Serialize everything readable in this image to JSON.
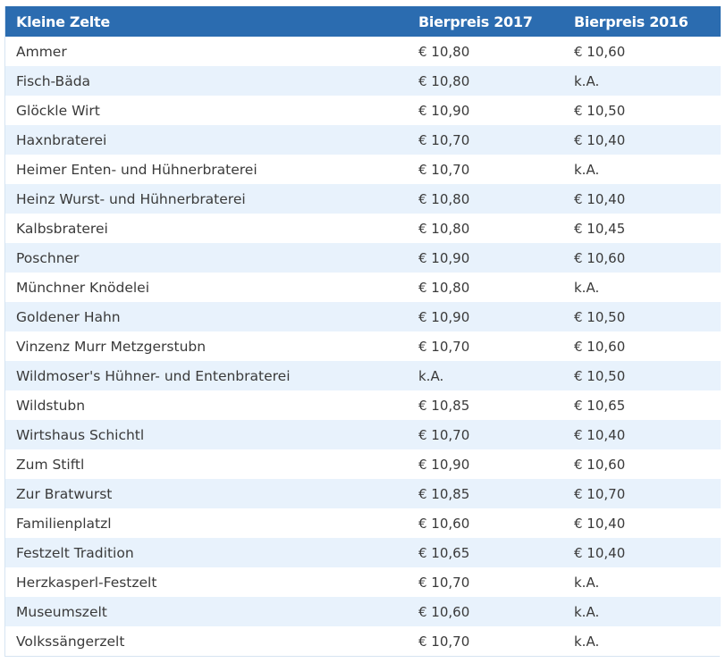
{
  "table": {
    "headers": [
      "Kleine Zelte",
      "Bierpreis 2017",
      "Bierpreis 2016"
    ],
    "rows": [
      [
        "Ammer",
        "€ 10,80",
        "€ 10,60"
      ],
      [
        "Fisch-Bäda",
        "€ 10,80",
        "k.A."
      ],
      [
        "Glöckle Wirt",
        "€ 10,90",
        "€ 10,50"
      ],
      [
        "Haxnbraterei",
        "€ 10,70",
        "€ 10,40"
      ],
      [
        "Heimer Enten- und Hühnerbraterei",
        "€ 10,70",
        "k.A."
      ],
      [
        "Heinz Wurst- und Hühnerbraterei",
        "€ 10,80",
        "€ 10,40"
      ],
      [
        "Kalbsbraterei",
        "€ 10,80",
        "€ 10,45"
      ],
      [
        "Poschner",
        "€ 10,90",
        "€ 10,60"
      ],
      [
        "Münchner Knödelei",
        "€ 10,80",
        "k.A."
      ],
      [
        "Goldener Hahn",
        "€ 10,90",
        "€ 10,50"
      ],
      [
        "Vinzenz Murr Metzgerstubn",
        "€ 10,70",
        "€ 10,60"
      ],
      [
        "Wildmoser's Hühner- und Entenbraterei",
        "k.A.",
        "€ 10,50"
      ],
      [
        "Wildstubn",
        "€ 10,85",
        "€ 10,65"
      ],
      [
        "Wirtshaus Schichtl",
        "€ 10,70",
        "€ 10,40"
      ],
      [
        "Zum Stiftl",
        "€ 10,90",
        "€ 10,60"
      ],
      [
        "Zur Bratwurst",
        "€ 10,85",
        "€ 10,70"
      ],
      [
        "Familienplatzl",
        "€ 10,60",
        "€ 10,40"
      ],
      [
        "Festzelt Tradition",
        "€ 10,65",
        "€ 10,40"
      ],
      [
        "Herzkasperl-Festzelt",
        "€ 10,70",
        "k.A."
      ],
      [
        "Museumszelt",
        "€ 10,60",
        "k.A."
      ],
      [
        "Volkssängerzelt",
        "€ 10,70",
        "k.A."
      ]
    ]
  },
  "colors": {
    "header_bg": "#2b6cb0",
    "header_text": "#ffffff",
    "row_alt_bg": "#e8f2fc",
    "row_bg": "#ffffff",
    "text": "#3a3a3a"
  }
}
